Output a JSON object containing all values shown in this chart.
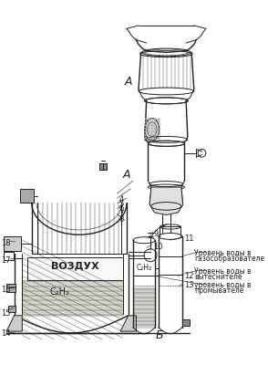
{
  "bg_color": "#f5f5f0",
  "line_color": "#222222",
  "label_A": "А",
  "label_B": "Б",
  "figsize": [
    2.94,
    4.0
  ],
  "dpi": 100,
  "text_vozduh": "ВОЗДУХ",
  "text_c2h2_1": "C₂H₂",
  "text_c2h2_2": "C₂H₂",
  "level1_line1": "Уровень воды в",
  "level1_line2": "газособразователе",
  "level2_line1": "Уровень воды в",
  "level2_line2": "вытеснителе",
  "level3_line1": "уровень воды в",
  "level3_line2": "промывателе"
}
